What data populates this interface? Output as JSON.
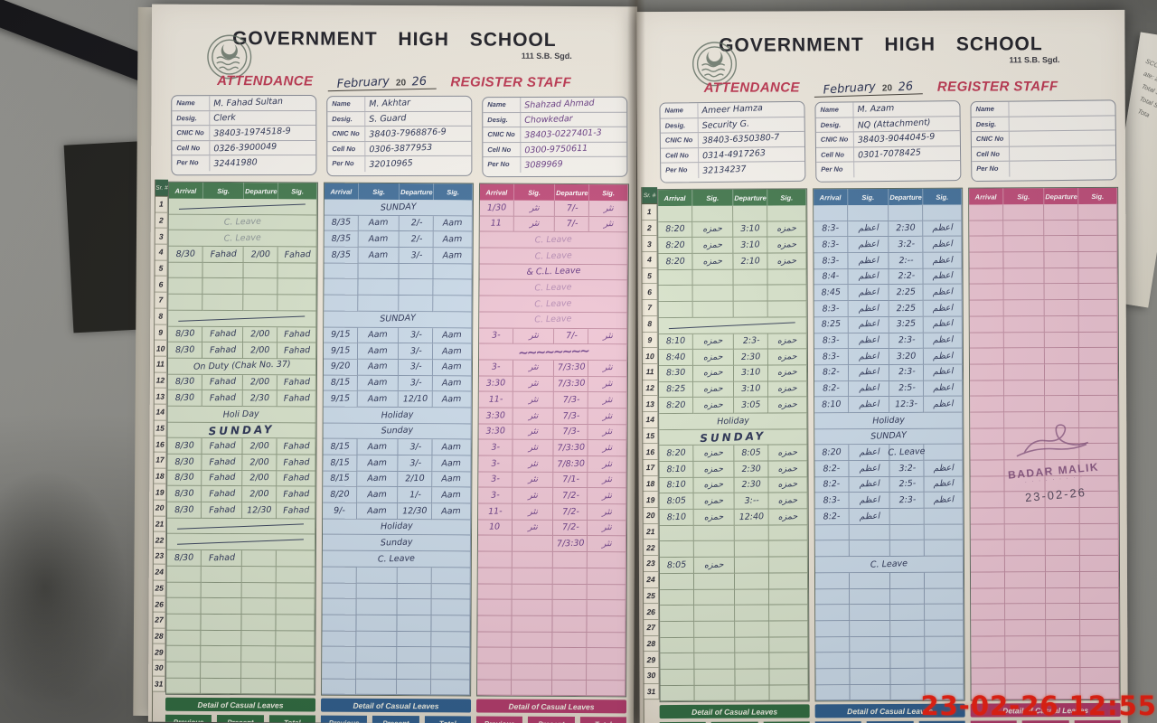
{
  "header": {
    "school": "GOVERNMENT HIGH SCHOOL",
    "school_sub": "111 S.B. Sgd.",
    "attendance": "ATTENDANCE",
    "month": "February",
    "year_prefix": "20",
    "year": "26",
    "register": "REGISTER STAFF"
  },
  "labels": {
    "serial": "Sr. #"
  },
  "serials": [
    "1",
    "2",
    "3",
    "4",
    "5",
    "6",
    "7",
    "8",
    "9",
    "10",
    "11",
    "12",
    "13",
    "14",
    "15",
    "16",
    "17",
    "18",
    "19",
    "20",
    "21",
    "22",
    "23",
    "24",
    "25",
    "26",
    "27",
    "28",
    "29",
    "30",
    "31"
  ],
  "info_labels": [
    "Name",
    "Desig.",
    "CNIC No",
    "Cell No",
    "Per No"
  ],
  "info_keys": [
    "name",
    "desig",
    "cnic",
    "cell",
    "per"
  ],
  "table_headers": [
    "Arrival",
    "Sig.",
    "Departure",
    "Sig."
  ],
  "casual": {
    "title": "Detail of Casual Leaves",
    "cols": [
      "Previous",
      "Present",
      "Total"
    ]
  },
  "timestamp": "23-02-26 12:55",
  "stamp": {
    "name": "BADAR MALIK",
    "subtext": "· · · · · · · · ·",
    "date": "23-02-26"
  },
  "side_paper": {
    "lines": [
      "SCOPE",
      "ate: 23",
      "Total St",
      "Total S",
      "Tota"
    ]
  },
  "colors": {
    "column_green": "#477c52",
    "column_blue": "#47749f",
    "column_pink": "#c2507d",
    "print_red": "#c23a55",
    "ink_blue": "#2c3456",
    "ink_purple": "#6a3d86",
    "timestamp_red": "#ef2012"
  },
  "pages": [
    {
      "staff": [
        {
          "theme": "green",
          "sig": "Fahad",
          "info": {
            "name": "M. Fahad Sultan",
            "desig": "Clerk",
            "cnic": "38403-1974518-9",
            "cell": "0326-3900049",
            "per": "32441980"
          },
          "rows": {
            "1": {
              "t": "dash"
            },
            "2": {
              "t": "C. Leave",
              "cls": "faint"
            },
            "3": {
              "t": "C. Leave",
              "cls": "faint"
            },
            "4": {
              "a": "8/30",
              "d": "2/00"
            },
            "8": {
              "t": "dash"
            },
            "9": {
              "a": "8/30",
              "d": "2/00"
            },
            "10": {
              "a": "8/30",
              "d": "2/00"
            },
            "11": {
              "t": "On Duty (Chak No. 37)"
            },
            "12": {
              "a": "8/30",
              "d": "2/00"
            },
            "13": {
              "a": "8/30",
              "d": "2/30"
            },
            "14": {
              "t": "Holi Day"
            },
            "15": {
              "t": "SUNDAY",
              "cls": "big"
            },
            "16": {
              "a": "8/30",
              "d": "2/00"
            },
            "17": {
              "a": "8/30",
              "d": "2/00"
            },
            "18": {
              "a": "8/30",
              "d": "2/00"
            },
            "19": {
              "a": "8/30",
              "d": "2/00"
            },
            "20": {
              "a": "8/30",
              "d": "12/30"
            },
            "21": {
              "t": "dash"
            },
            "22": {
              "t": "dash"
            },
            "23": {
              "a": "8/30"
            }
          }
        },
        {
          "theme": "blue",
          "sig": "Aam",
          "info": {
            "name": "M. Akhtar",
            "desig": "S. Guard",
            "cnic": "38403-7968876-9",
            "cell": "0306-3877953",
            "per": "32010965"
          },
          "rows": {
            "1": {
              "t": "SUNDAY"
            },
            "2": {
              "a": "8/35",
              "d": "2/-"
            },
            "3": {
              "a": "8/35",
              "d": "2/-"
            },
            "4": {
              "a": "8/35",
              "d": "3/-"
            },
            "8": {
              "t": "SUNDAY"
            },
            "9": {
              "a": "9/15",
              "d": "3/-"
            },
            "10": {
              "a": "9/15",
              "d": "3/-"
            },
            "11": {
              "a": "9/20",
              "d": "3/-"
            },
            "12": {
              "a": "8/15",
              "d": "3/-"
            },
            "13": {
              "a": "9/15",
              "d": "12/10"
            },
            "14": {
              "t": "Holiday"
            },
            "15": {
              "t": "Sunday"
            },
            "16": {
              "a": "8/15",
              "d": "3/-"
            },
            "17": {
              "a": "8/15",
              "d": "3/-"
            },
            "18": {
              "a": "8/15",
              "d": "2/10"
            },
            "19": {
              "a": "8/20",
              "d": "1/-"
            },
            "20": {
              "a": "9/-",
              "d": "12/30"
            },
            "21": {
              "t": "Holiday"
            },
            "22": {
              "t": "Sunday"
            },
            "23": {
              "t": "C. Leave"
            }
          }
        },
        {
          "theme": "pink",
          "sig": "نثر",
          "info": {
            "name": "Shahzad Ahmad",
            "desig": "Chowkedar",
            "cnic": "38403-0227401-3",
            "cell": "0300-9750611",
            "per": "3089969"
          },
          "rows": {
            "1": {
              "a": "1/30",
              "d": "7/-"
            },
            "2": {
              "a": "11",
              "d": "7/-"
            },
            "3": {
              "t": "C. Leave",
              "cls": "faint"
            },
            "4": {
              "t": "C. Leave",
              "cls": "faint"
            },
            "5": {
              "t": "& C.L. Leave"
            },
            "6": {
              "t": "C. Leave",
              "cls": "faint"
            },
            "7": {
              "t": "C. Leave",
              "cls": "faint"
            },
            "8": {
              "t": "C. Leave",
              "cls": "faint"
            },
            "9": {
              "a": "3-",
              "d": "7/-"
            },
            "10": {
              "t": "~~~~~~~~",
              "cls": "inkblot"
            },
            "11": {
              "a": "3-",
              "d": "7/3:30"
            },
            "12": {
              "a": "3:30",
              "d": "7/3:30"
            },
            "13": {
              "a": "11-",
              "d": "7/3-"
            },
            "14": {
              "a": "3:30",
              "d": "7/3-"
            },
            "15": {
              "a": "3:30",
              "d": "7/3-"
            },
            "16": {
              "a": "3-",
              "d": "7/3:30"
            },
            "17": {
              "a": "3-",
              "d": "7/8:30"
            },
            "18": {
              "a": "3-",
              "d": "7/1-"
            },
            "19": {
              "a": "3-",
              "d": "7/2-"
            },
            "20": {
              "a": "11-",
              "d": "7/2-"
            },
            "21": {
              "a": "10",
              "d": "7/2-"
            },
            "22": {
              "d": "7/3:30"
            }
          }
        }
      ]
    },
    {
      "staff": [
        {
          "theme": "green",
          "sig": "حمزه",
          "info": {
            "name": "Ameer Hamza",
            "desig": "Security G.",
            "cnic": "38403-6350380-7",
            "cell": "0314-4917263",
            "per": "32134237"
          },
          "rows": {
            "2": {
              "a": "8:20",
              "d": "3:10"
            },
            "3": {
              "a": "8:20",
              "d": "3:10"
            },
            "4": {
              "a": "8:20",
              "d": "2:10"
            },
            "8": {
              "t": "dash"
            },
            "9": {
              "a": "8:10",
              "d": "2:3-"
            },
            "10": {
              "a": "8:40",
              "d": "2:30"
            },
            "11": {
              "a": "8:30",
              "d": "3:10"
            },
            "12": {
              "a": "8:25",
              "d": "3:10"
            },
            "13": {
              "a": "8:20",
              "d": "3:05"
            },
            "14": {
              "t": "Holiday"
            },
            "15": {
              "t": "SUNDAY",
              "cls": "big"
            },
            "16": {
              "a": "8:20",
              "d": "8:05"
            },
            "17": {
              "a": "8:10",
              "d": "2:30"
            },
            "18": {
              "a": "8:10",
              "d": "2:30"
            },
            "19": {
              "a": "8:05",
              "d": "3:--"
            },
            "20": {
              "a": "8:10",
              "d": "12:40"
            },
            "23": {
              "a": "8:05"
            }
          }
        },
        {
          "theme": "blue",
          "sig": "اعظم",
          "info": {
            "name": "M. Azam",
            "desig": "NQ (Attachment)",
            "cnic": "38403-9044045-9",
            "cell": "0301-7078425",
            "per": ""
          },
          "rows": {
            "2": {
              "a": "8:3-",
              "d": "2:30"
            },
            "3": {
              "a": "8:3-",
              "d": "3:2-"
            },
            "4": {
              "a": "8:3-",
              "d": "2:--"
            },
            "5": {
              "a": "8:4-",
              "d": "2:2-"
            },
            "6": {
              "a": "8:45",
              "d": "2:25"
            },
            "7": {
              "a": "8:3-",
              "d": "2:25"
            },
            "8": {
              "a": "8:25",
              "d": "3:25"
            },
            "9": {
              "a": "8:3-",
              "d": "2:3-"
            },
            "10": {
              "a": "8:3-",
              "d": "3:20"
            },
            "11": {
              "a": "8:2-",
              "d": "2:3-"
            },
            "12": {
              "a": "8:2-",
              "d": "2:5-"
            },
            "13": {
              "a": "8:10",
              "d": "12:3-"
            },
            "14": {
              "t": "Holiday"
            },
            "15": {
              "t": "SUNDAY"
            },
            "16": {
              "a": "8:20",
              "d": "C. Leave",
              "s2": ""
            },
            "17": {
              "a": "8:2-",
              "d": "3:2-"
            },
            "18": {
              "a": "8:2-",
              "d": "2:5-"
            },
            "19": {
              "a": "8:3-",
              "d": "2:3-"
            },
            "20": {
              "a": "8:2-"
            },
            "23": {
              "t": "C. Leave"
            }
          }
        },
        {
          "theme": "pink",
          "sig": "",
          "info": {
            "name": "",
            "desig": "",
            "cnic": "",
            "cell": "",
            "per": ""
          },
          "rows": {}
        }
      ]
    }
  ]
}
